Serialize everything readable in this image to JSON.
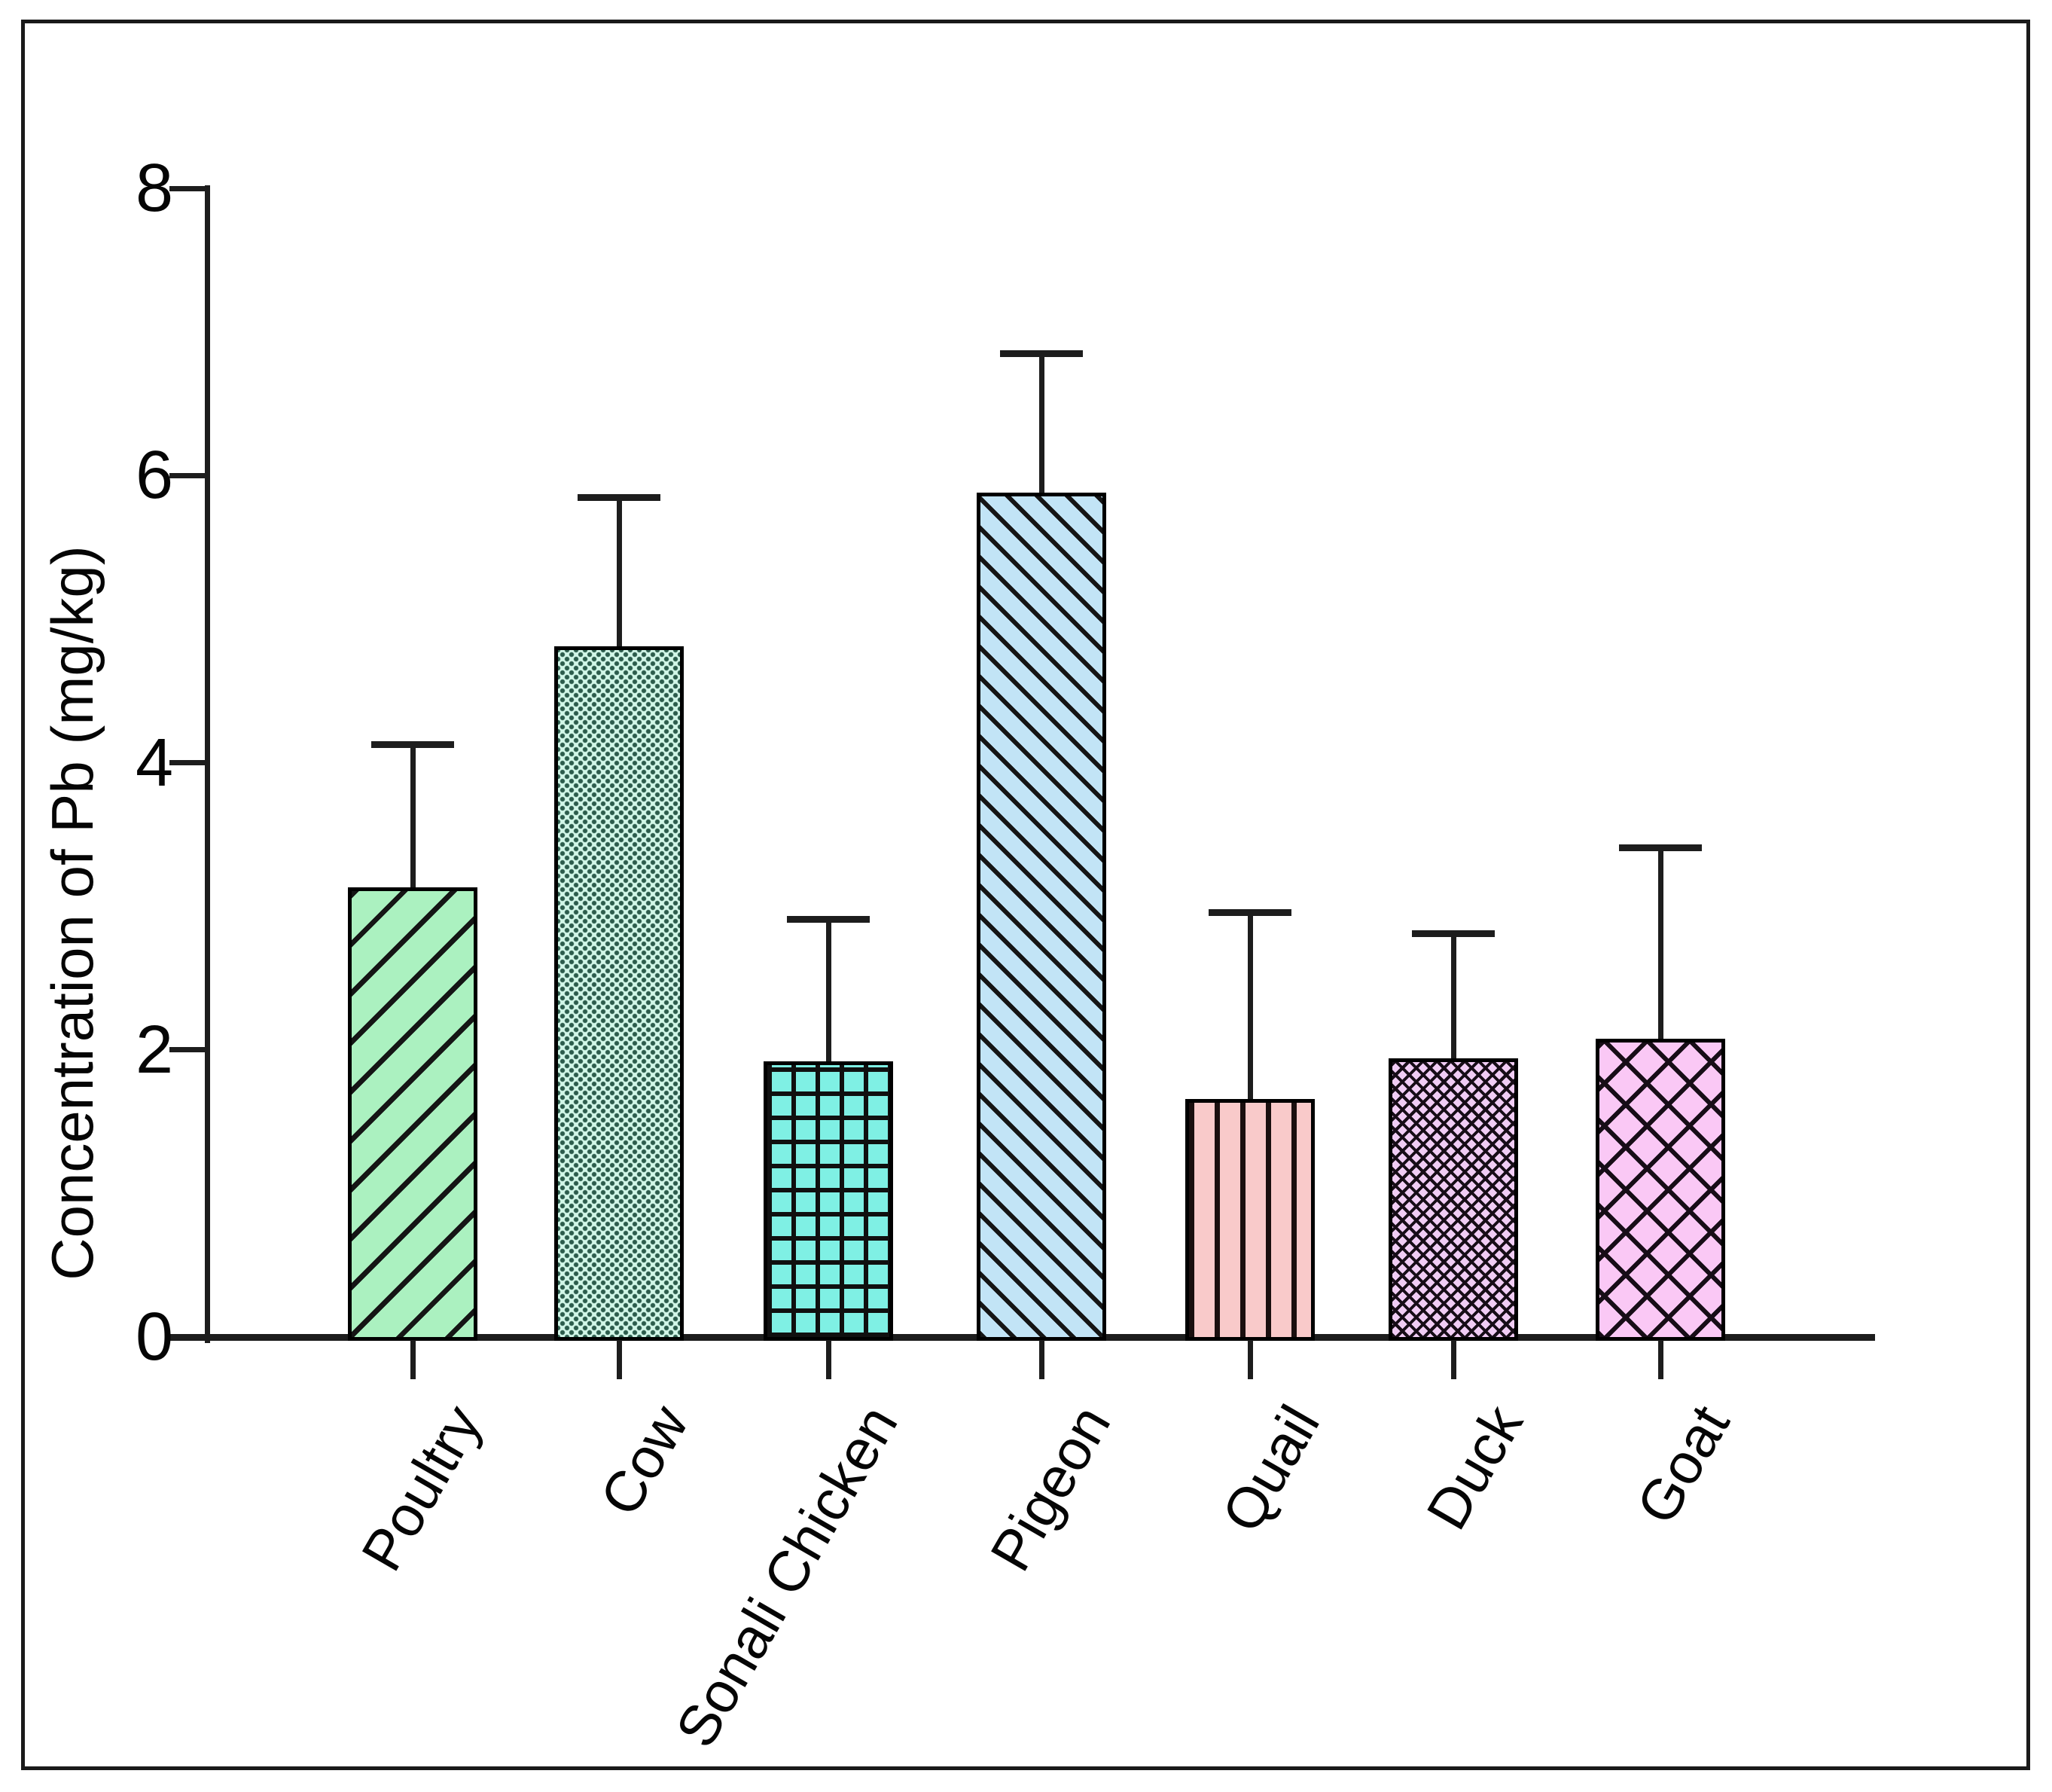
{
  "figure": {
    "background_color": "#ffffff",
    "border_color": "#1a1a1a",
    "axis_color": "#1d1d1d",
    "text_color": "#050505"
  },
  "chart_data": {
    "type": "bar",
    "title": "",
    "xlabel": "",
    "ylabel": "Concentration of Pb (mg/kg)",
    "ylim": [
      0,
      8
    ],
    "yticks": [
      0,
      2,
      4,
      6,
      8
    ],
    "grid": false,
    "legend": null,
    "categories": [
      "Poultry",
      "Cow",
      "Sonali Chicken",
      "Pigeon",
      "Quail",
      "Duck",
      "Goat"
    ],
    "values": [
      3.13,
      4.81,
      1.92,
      5.88,
      1.66,
      1.94,
      2.08
    ],
    "errors_plus": [
      1.0,
      1.04,
      0.99,
      0.97,
      1.3,
      0.87,
      1.33
    ],
    "bar_styles": [
      {
        "name": "diagonal-up-hatch",
        "fill": "#abf1c0",
        "line": "#151515"
      },
      {
        "name": "dot-grid",
        "fill": "#d2f7e8",
        "line": "#2c5c4c"
      },
      {
        "name": "square-grid",
        "fill": "#7ff0e4",
        "line": "#101010"
      },
      {
        "name": "diagonal-down-hatch",
        "fill": "#c2e4f6",
        "line": "#151515"
      },
      {
        "name": "vertical-lines",
        "fill": "#f9caca",
        "line": "#1a0f0f"
      },
      {
        "name": "dense-crosshatch",
        "fill": "#f0ccf4",
        "line": "#170d17"
      },
      {
        "name": "crosshatch",
        "fill": "#fac8f5",
        "line": "#170d17"
      }
    ]
  }
}
